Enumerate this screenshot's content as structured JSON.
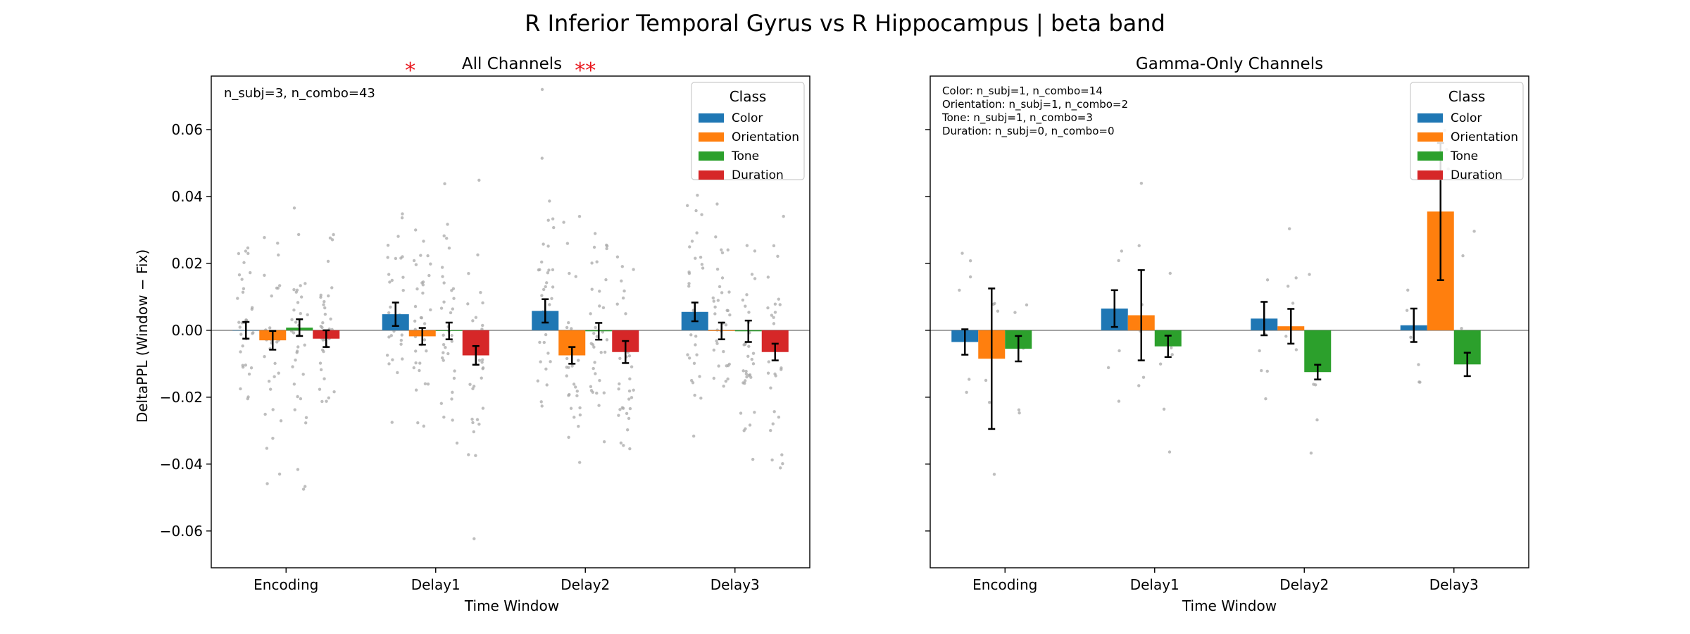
{
  "figure": {
    "title": "R Inferior Temporal Gyrus vs R Hippocampus  |  beta band"
  },
  "legend": {
    "title": "Class",
    "items": [
      {
        "label": "Color",
        "color": "#1f77b4"
      },
      {
        "label": "Orientation",
        "color": "#ff7f0e"
      },
      {
        "label": "Tone",
        "color": "#2ca02c"
      },
      {
        "label": "Duration",
        "color": "#d62728"
      }
    ]
  },
  "chart_data": [
    {
      "type": "bar",
      "title": "All Channels",
      "xlabel": "Time Window",
      "ylabel": "DeltaPPL (Window − Fix)",
      "ylim": [
        -0.071,
        0.076
      ],
      "yticks": [
        -0.06,
        -0.04,
        -0.02,
        0.0,
        0.02,
        0.04,
        0.06
      ],
      "ytick_labels": [
        "−0.06",
        "−0.04",
        "−0.02",
        "0.00",
        "0.02",
        "0.04",
        "0.06"
      ],
      "categories": [
        "Encoding",
        "Delay1",
        "Delay2",
        "Delay3"
      ],
      "series": [
        {
          "name": "Color",
          "values": [
            0.0,
            0.0048,
            0.0058,
            0.0055
          ],
          "errors": [
            0.0025,
            0.0035,
            0.0035,
            0.0028
          ]
        },
        {
          "name": "Orientation",
          "values": [
            -0.003,
            -0.0018,
            -0.0075,
            -0.0002
          ],
          "errors": [
            0.0028,
            0.0025,
            0.0025,
            0.0025
          ]
        },
        {
          "name": "Tone",
          "values": [
            0.0008,
            -0.0002,
            -0.0003,
            -0.0003
          ],
          "errors": [
            0.0025,
            0.0025,
            0.0025,
            0.0032
          ]
        },
        {
          "name": "Duration",
          "values": [
            -0.0025,
            -0.0075,
            -0.0065,
            -0.0065
          ],
          "errors": [
            0.0025,
            0.0028,
            0.0033,
            0.0025
          ]
        }
      ],
      "annotation": "n_subj=3, n_combo=43",
      "significance": [
        {
          "category": "Delay1",
          "offset": -0.17,
          "label": "*"
        },
        {
          "category": "Delay2",
          "offset": 0.0,
          "label": "**"
        }
      ],
      "grid": false,
      "legend_position": "top-right",
      "scatter_points": "dense"
    },
    {
      "type": "bar",
      "title": "Gamma-Only Channels",
      "xlabel": "Time Window",
      "ylabel": "",
      "ylim": [
        -0.071,
        0.076
      ],
      "categories": [
        "Encoding",
        "Delay1",
        "Delay2",
        "Delay3"
      ],
      "series": [
        {
          "name": "Color",
          "values": [
            -0.0035,
            0.0065,
            0.0035,
            0.0015
          ],
          "errors": [
            0.0038,
            0.0055,
            0.005,
            0.005
          ]
        },
        {
          "name": "Orientation",
          "values": [
            -0.0085,
            0.0045,
            0.0012,
            0.0355
          ],
          "errors": [
            0.021,
            0.0135,
            0.0052,
            0.0205
          ]
        },
        {
          "name": "Tone",
          "values": [
            -0.0055,
            -0.0048,
            -0.0125,
            -0.0102
          ],
          "errors": [
            0.0038,
            0.0032,
            0.0022,
            0.0035
          ]
        },
        {
          "name": "Duration",
          "values": [
            0.0,
            0.0,
            0.0,
            0.0
          ],
          "errors": [
            0,
            0,
            0,
            0
          ]
        }
      ],
      "annotation_lines": [
        "Color: n_subj=1, n_combo=14",
        "Orientation: n_subj=1, n_combo=2",
        "Tone: n_subj=1, n_combo=3",
        "Duration: n_subj=0, n_combo=0"
      ],
      "grid": false,
      "legend_position": "top-right",
      "scatter_points": "sparse"
    }
  ]
}
